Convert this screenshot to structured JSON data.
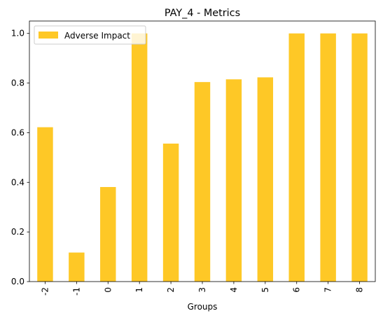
{
  "chart_data": {
    "type": "bar",
    "title": "PAY_4 - Metrics",
    "xlabel": "Groups",
    "ylabel": "",
    "categories": [
      "-2",
      "-1",
      "0",
      "1",
      "2",
      "3",
      "4",
      "5",
      "6",
      "7",
      "8"
    ],
    "series": [
      {
        "name": "Adverse Impact",
        "values": [
          0.622,
          0.117,
          0.381,
          1.0,
          0.556,
          0.804,
          0.815,
          0.823,
          1.0,
          1.0,
          1.0
        ],
        "color": "#fec826"
      }
    ],
    "ylim": [
      0,
      1.05
    ],
    "yticks": [
      0.0,
      0.2,
      0.4,
      0.6,
      0.8,
      1.0
    ],
    "ytick_labels": [
      "0.0",
      "0.2",
      "0.4",
      "0.6",
      "0.8",
      "1.0"
    ],
    "grid": false,
    "legend_position": "top-left"
  }
}
